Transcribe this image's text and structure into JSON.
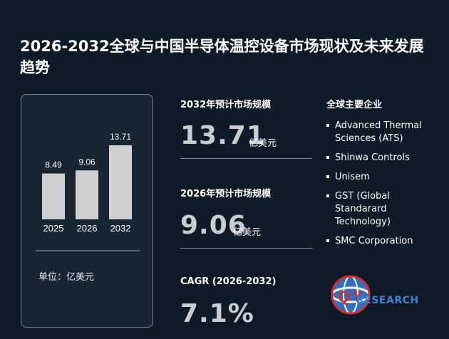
{
  "title": "2026-2032全球与中国半导体温控设备市场现状及未来发展趋势",
  "chart_data": {
    "type": "bar",
    "categories": [
      "2025",
      "2026",
      "2032"
    ],
    "values": [
      8.49,
      9.06,
      13.71
    ],
    "unit_label": "单位：亿美元"
  },
  "metrics": [
    {
      "label": "2032年预计市场规模",
      "value": "13.71",
      "unit": "亿美元"
    },
    {
      "label": "2026年预计市场规模",
      "value": "9.06",
      "unit": "亿美元"
    },
    {
      "label": "CAGR (2026-2032)",
      "value": "7.1%",
      "unit": ""
    }
  ],
  "companies": {
    "heading": "全球主要企业",
    "items": [
      "Advanced Thermal Sciences (ATS)",
      "Shinwa Controls",
      "Unisem",
      "GST (Global Standarard Technology)",
      "SMC Corporation"
    ]
  },
  "logo": {
    "q": "Q",
    "y": "Y",
    "text": "RESEARCH"
  },
  "colors": {
    "background": "#0e1a27",
    "bar": "#cfcfd1",
    "logo_red": "#d62c2c",
    "logo_blue": "#2f6fc0"
  }
}
